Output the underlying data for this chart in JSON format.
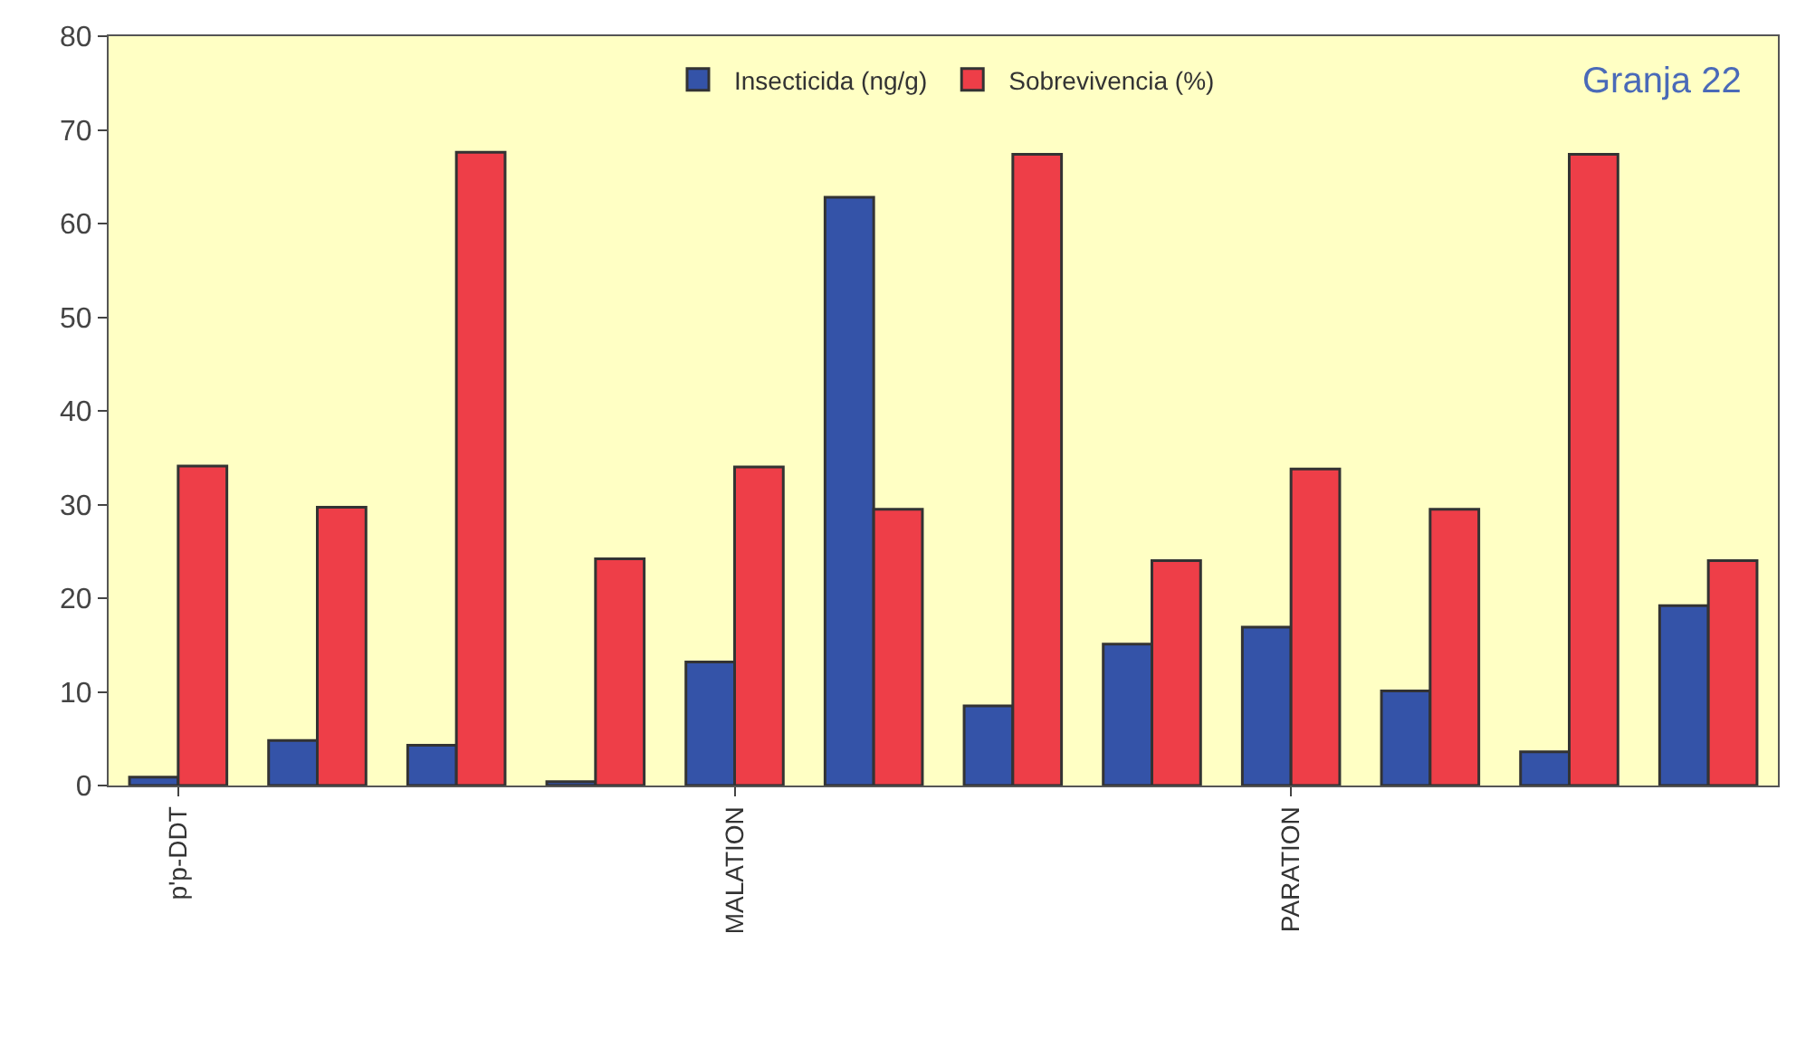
{
  "chart_data": {
    "type": "bar",
    "categories": [
      "p'p-DDT",
      null,
      null,
      null,
      "MALATION",
      null,
      null,
      null,
      "PARATION",
      null,
      null,
      null
    ],
    "series": [
      {
        "name": "Insecticida (ng/g)",
        "color": "#3453a8",
        "values": [
          0.9,
          4.8,
          4.3,
          0.4,
          13.2,
          62.8,
          8.5,
          15.1,
          16.9,
          10.1,
          3.6,
          19.2
        ]
      },
      {
        "name": "Sobrevivencia (%)",
        "color": "#ee3e48",
        "values": [
          34.1,
          29.7,
          67.6,
          24.2,
          34,
          29.5,
          67.4,
          24,
          33.8,
          29.5,
          67.4,
          24
        ]
      }
    ],
    "ylim": [
      0,
      80
    ],
    "yticks": [
      0,
      10,
      20,
      30,
      40,
      50,
      60,
      70,
      80
    ],
    "annotations": [
      "Granja 22"
    ],
    "grid": false,
    "legend": "top"
  }
}
